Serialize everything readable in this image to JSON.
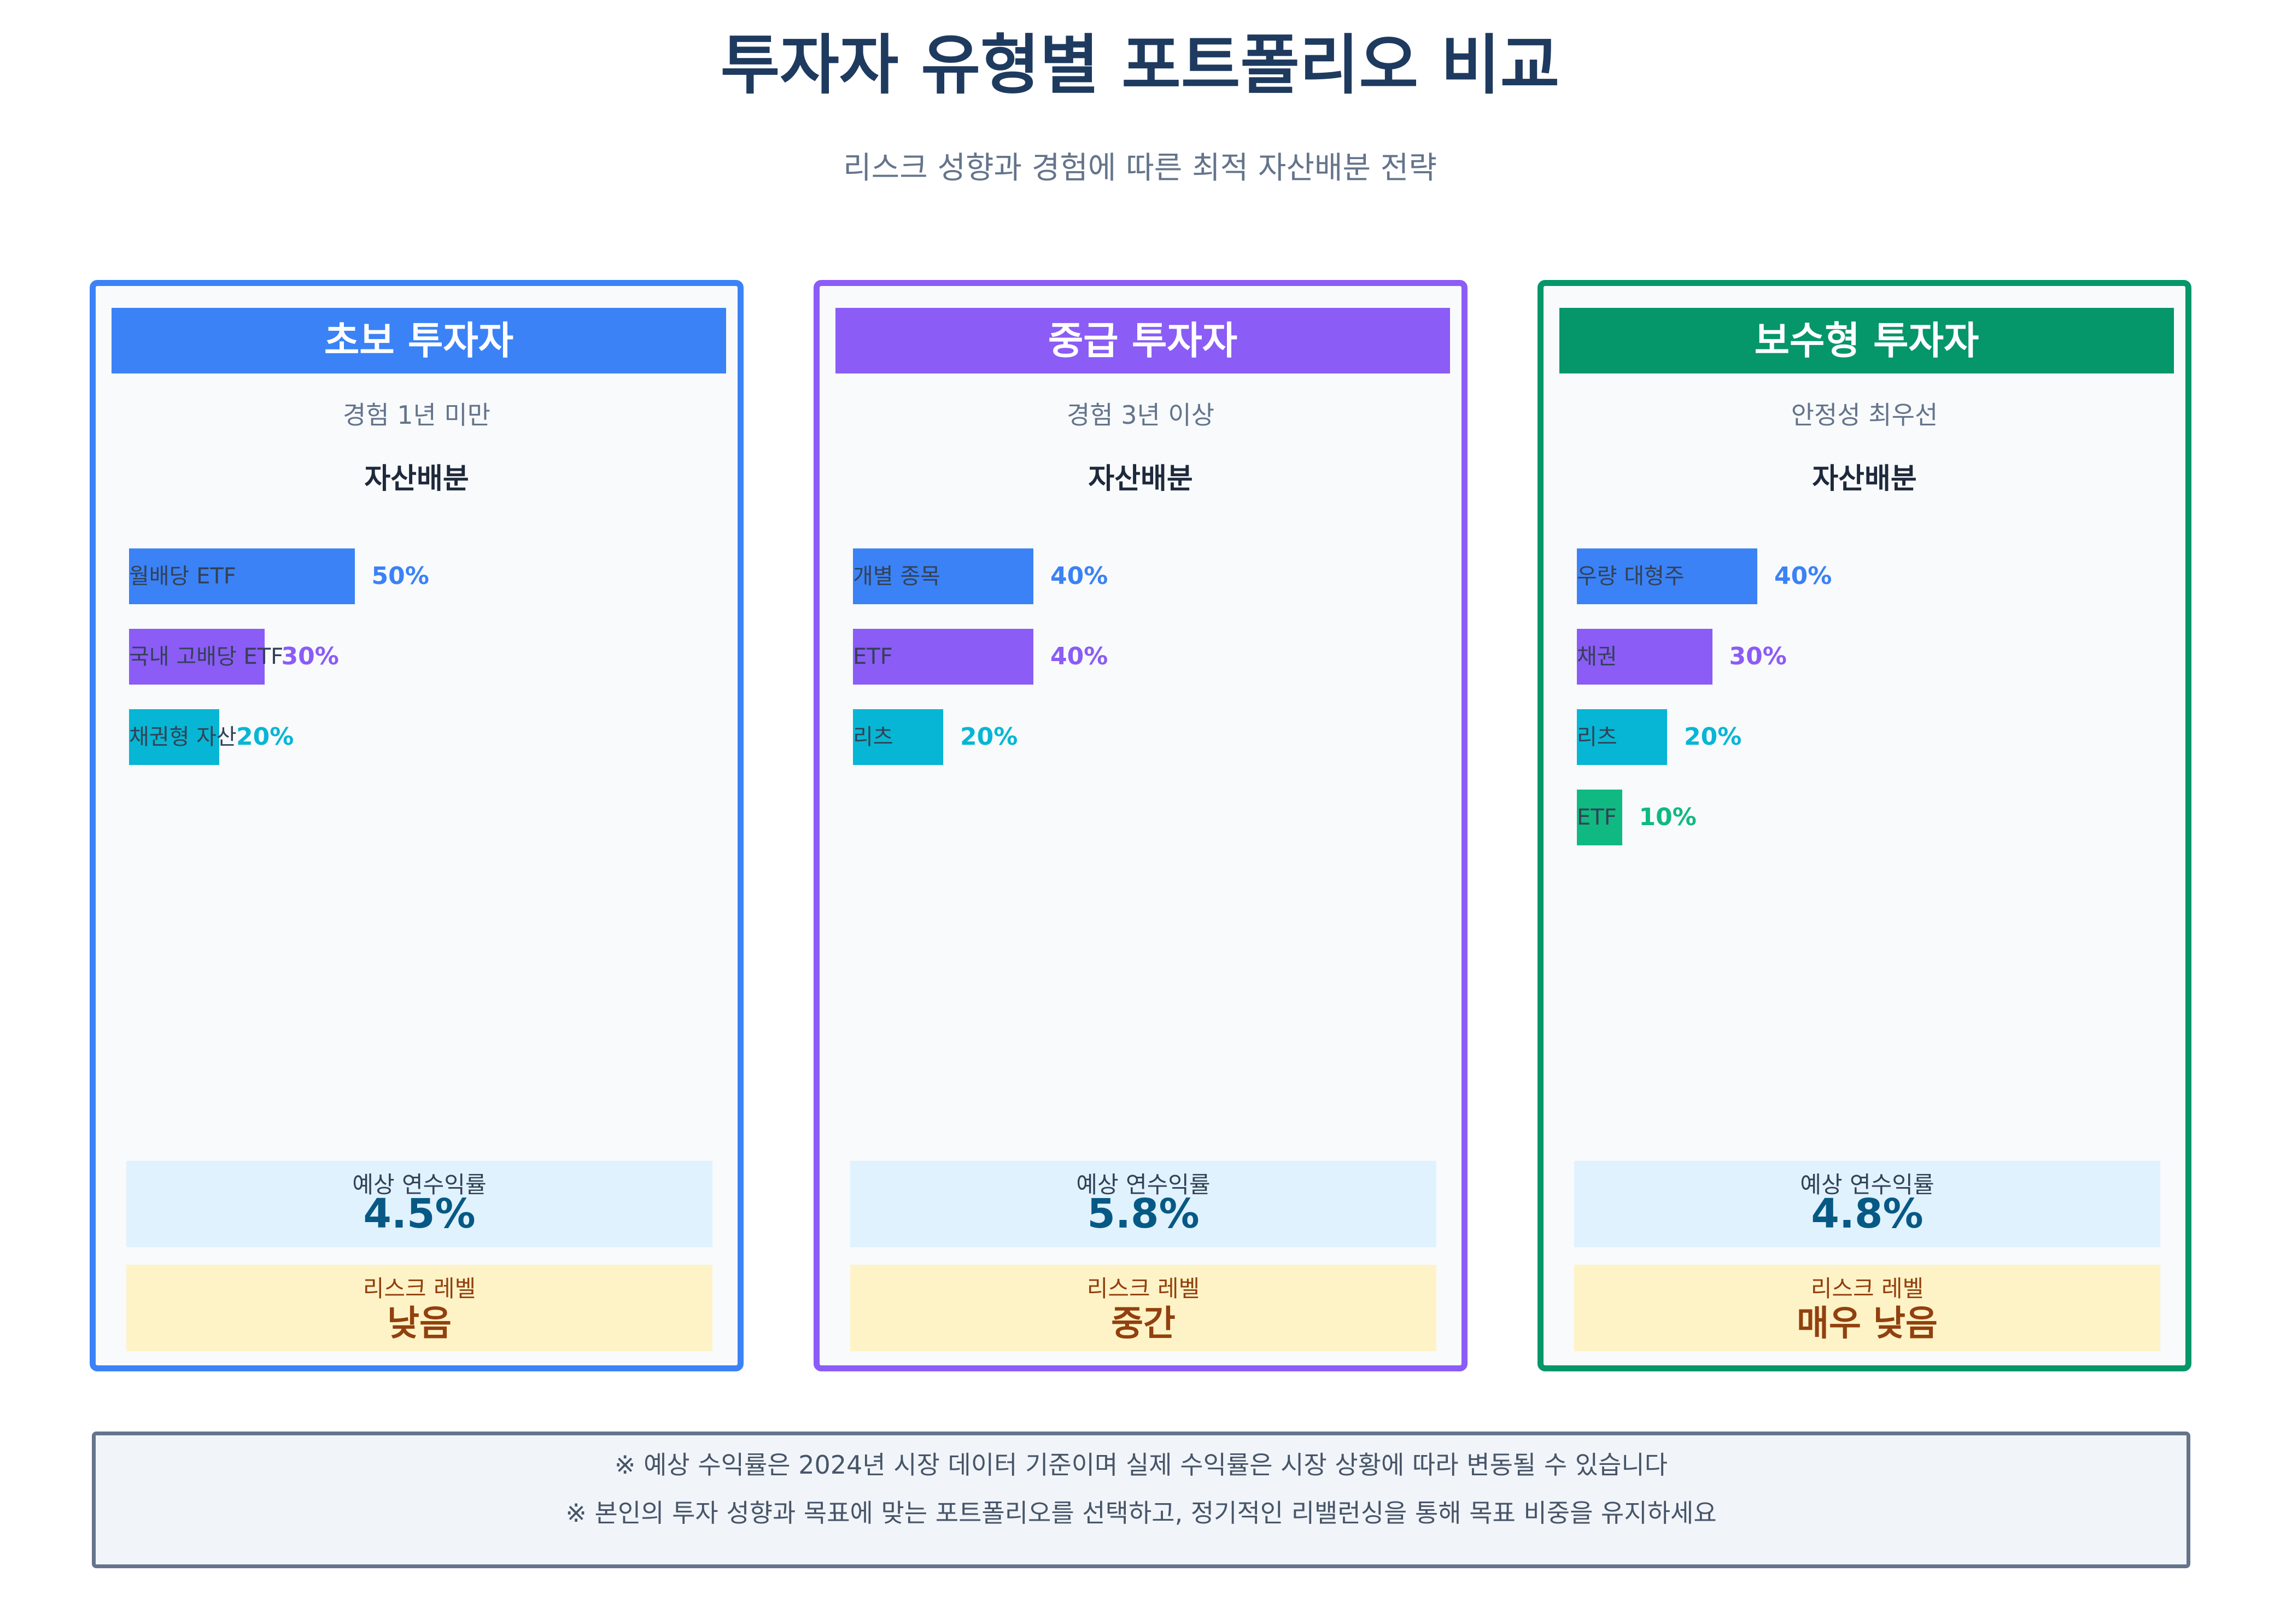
{
  "chart_data": {
    "type": "bar",
    "title": "투자자 유형별 포트폴리오 비교",
    "subtitle": "리스크 성향과 경험에 따른 최적 자산배분 전략",
    "value_suffix": "%",
    "xlim": [
      0,
      100
    ],
    "section_title": "자산배분",
    "return_label": "예상 연수익률",
    "risk_label": "리스크 레벨",
    "charts": [
      {
        "name": "초보 투자자",
        "description": "경험 1년 미만",
        "color": "#3b82f6",
        "categories": [
          "월배당 ETF",
          "국내 고배당 ETF",
          "채권형 자산"
        ],
        "values": [
          50,
          30,
          20
        ],
        "bar_colors": [
          "#3b82f6",
          "#8b5cf6",
          "#06b6d4"
        ],
        "expected_return": "4.5%",
        "risk_level": "낮음"
      },
      {
        "name": "중급 투자자",
        "description": "경험 3년 이상",
        "color": "#8b5cf6",
        "categories": [
          "개별 종목",
          "ETF",
          "리츠"
        ],
        "values": [
          40,
          40,
          20
        ],
        "bar_colors": [
          "#3b82f6",
          "#8b5cf6",
          "#06b6d4"
        ],
        "expected_return": "5.8%",
        "risk_level": "중간"
      },
      {
        "name": "보수형 투자자",
        "description": "안정성 최우선",
        "color": "#059669",
        "categories": [
          "우량 대형주",
          "채권",
          "리츠",
          "ETF"
        ],
        "values": [
          40,
          30,
          20,
          10
        ],
        "bar_colors": [
          "#3b82f6",
          "#8b5cf6",
          "#06b6d4",
          "#10b981"
        ],
        "expected_return": "4.8%",
        "risk_level": "매우 낮음"
      }
    ]
  },
  "notes": [
    "※ 예상 수익률은 2024년 시장 데이터 기준이며 실제 수익률은 시장 상황에 따라 변동될 수 있습니다",
    "※ 본인의 투자 성향과 목표에 맞는 포트폴리오를 선택하고, 정기적인 리밸런싱을 통해 목표 비중을 유지하세요"
  ]
}
